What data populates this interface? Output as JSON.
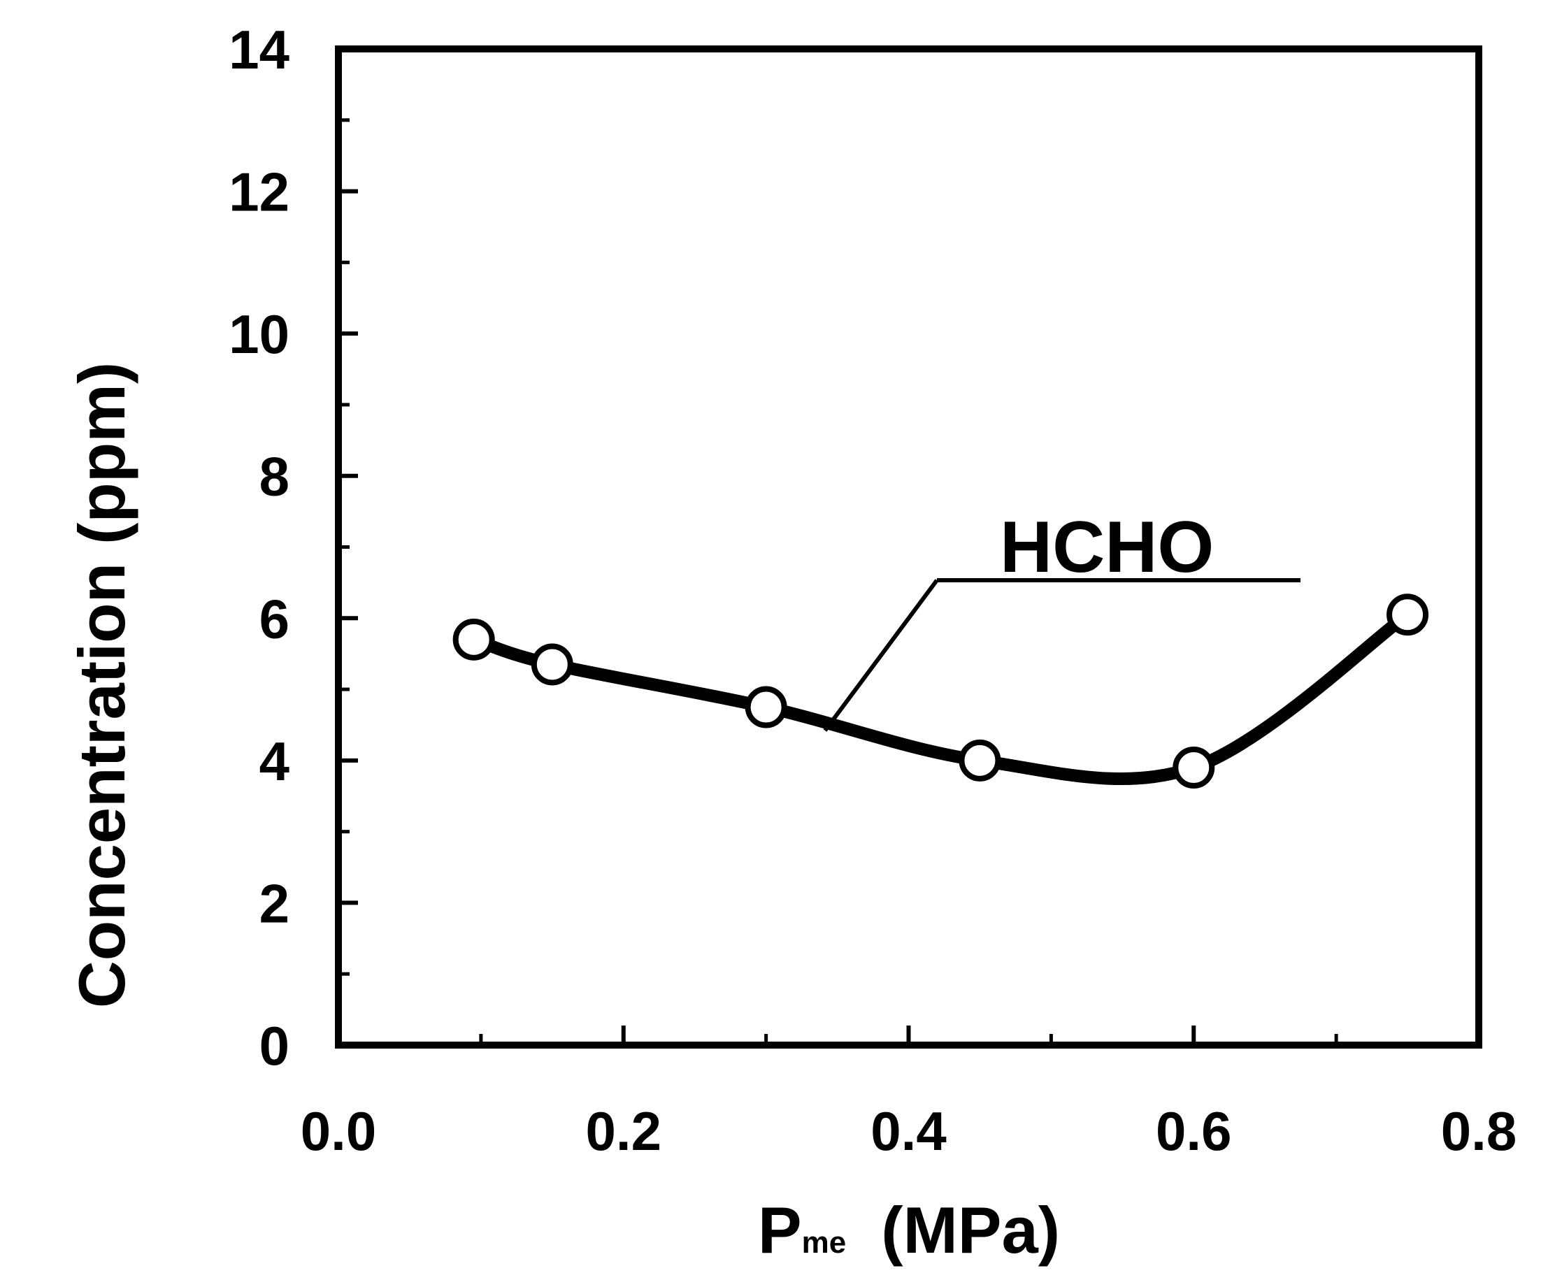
{
  "chart_data": {
    "type": "line",
    "x_axis": {
      "label_main": "P",
      "label_sub": "me",
      "label_unit": "(MPa)",
      "range": [
        0.0,
        0.8
      ],
      "ticks": [
        "0.0",
        "0.2",
        "0.4",
        "0.6",
        "0.8"
      ]
    },
    "y_axis": {
      "label": "Concentration (ppm)",
      "range": [
        0,
        14
      ],
      "ticks": [
        "0",
        "2",
        "4",
        "6",
        "8",
        "10",
        "12",
        "14"
      ]
    },
    "grid": false,
    "series": [
      {
        "name": "HCHO",
        "marker": "open-circle",
        "color": "#000000",
        "x": [
          0.095,
          0.15,
          0.3,
          0.45,
          0.6,
          0.75
        ],
        "y": [
          5.7,
          5.35,
          4.75,
          4.0,
          3.9,
          6.05
        ]
      }
    ]
  }
}
